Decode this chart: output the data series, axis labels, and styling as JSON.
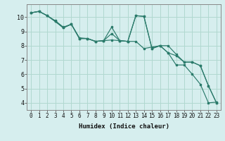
{
  "title": "",
  "xlabel": "Humidex (Indice chaleur)",
  "background_color": "#d6eeee",
  "grid_color": "#b0d8d0",
  "line_color": "#2a7a6a",
  "xlim": [
    -0.5,
    23.5
  ],
  "ylim": [
    3.5,
    10.9
  ],
  "xticks": [
    0,
    1,
    2,
    3,
    4,
    5,
    6,
    7,
    8,
    9,
    10,
    11,
    12,
    13,
    14,
    15,
    16,
    17,
    18,
    19,
    20,
    21,
    22,
    23
  ],
  "yticks": [
    4,
    5,
    6,
    7,
    8,
    9,
    10
  ],
  "series1_x": [
    0,
    1,
    2,
    3,
    4,
    5,
    6,
    7,
    8,
    9,
    10,
    11,
    12,
    13,
    14,
    15,
    16,
    17,
    18,
    19,
    20,
    21,
    22,
    23
  ],
  "series1_y": [
    10.3,
    10.4,
    10.1,
    9.75,
    9.3,
    9.5,
    8.55,
    8.5,
    8.3,
    8.35,
    8.4,
    8.35,
    8.3,
    8.3,
    7.8,
    7.9,
    8.0,
    7.5,
    6.65,
    6.65,
    6.0,
    5.3,
    4.0,
    4.05
  ],
  "series2_x": [
    0,
    1,
    2,
    3,
    4,
    5,
    6,
    7,
    8,
    9,
    10,
    11,
    12,
    13,
    14,
    15,
    16,
    17,
    18,
    19,
    20,
    21,
    22,
    23
  ],
  "series2_y": [
    10.3,
    10.4,
    10.1,
    9.7,
    9.25,
    9.5,
    8.5,
    8.5,
    8.3,
    8.35,
    8.85,
    8.35,
    8.3,
    10.1,
    10.05,
    7.8,
    8.0,
    8.0,
    7.4,
    6.85,
    6.85,
    6.6,
    5.2,
    4.0
  ],
  "series3_x": [
    0,
    1,
    2,
    3,
    4,
    5,
    6,
    7,
    8,
    9,
    10,
    11,
    12,
    13,
    14,
    15,
    16,
    17,
    18,
    19,
    20,
    21,
    22,
    23
  ],
  "series3_y": [
    10.3,
    10.4,
    10.1,
    9.7,
    9.25,
    9.5,
    8.5,
    8.5,
    8.3,
    8.35,
    9.3,
    8.35,
    8.3,
    10.1,
    10.05,
    7.8,
    8.0,
    7.5,
    7.3,
    6.85,
    6.85,
    6.6,
    5.2,
    4.0
  ]
}
